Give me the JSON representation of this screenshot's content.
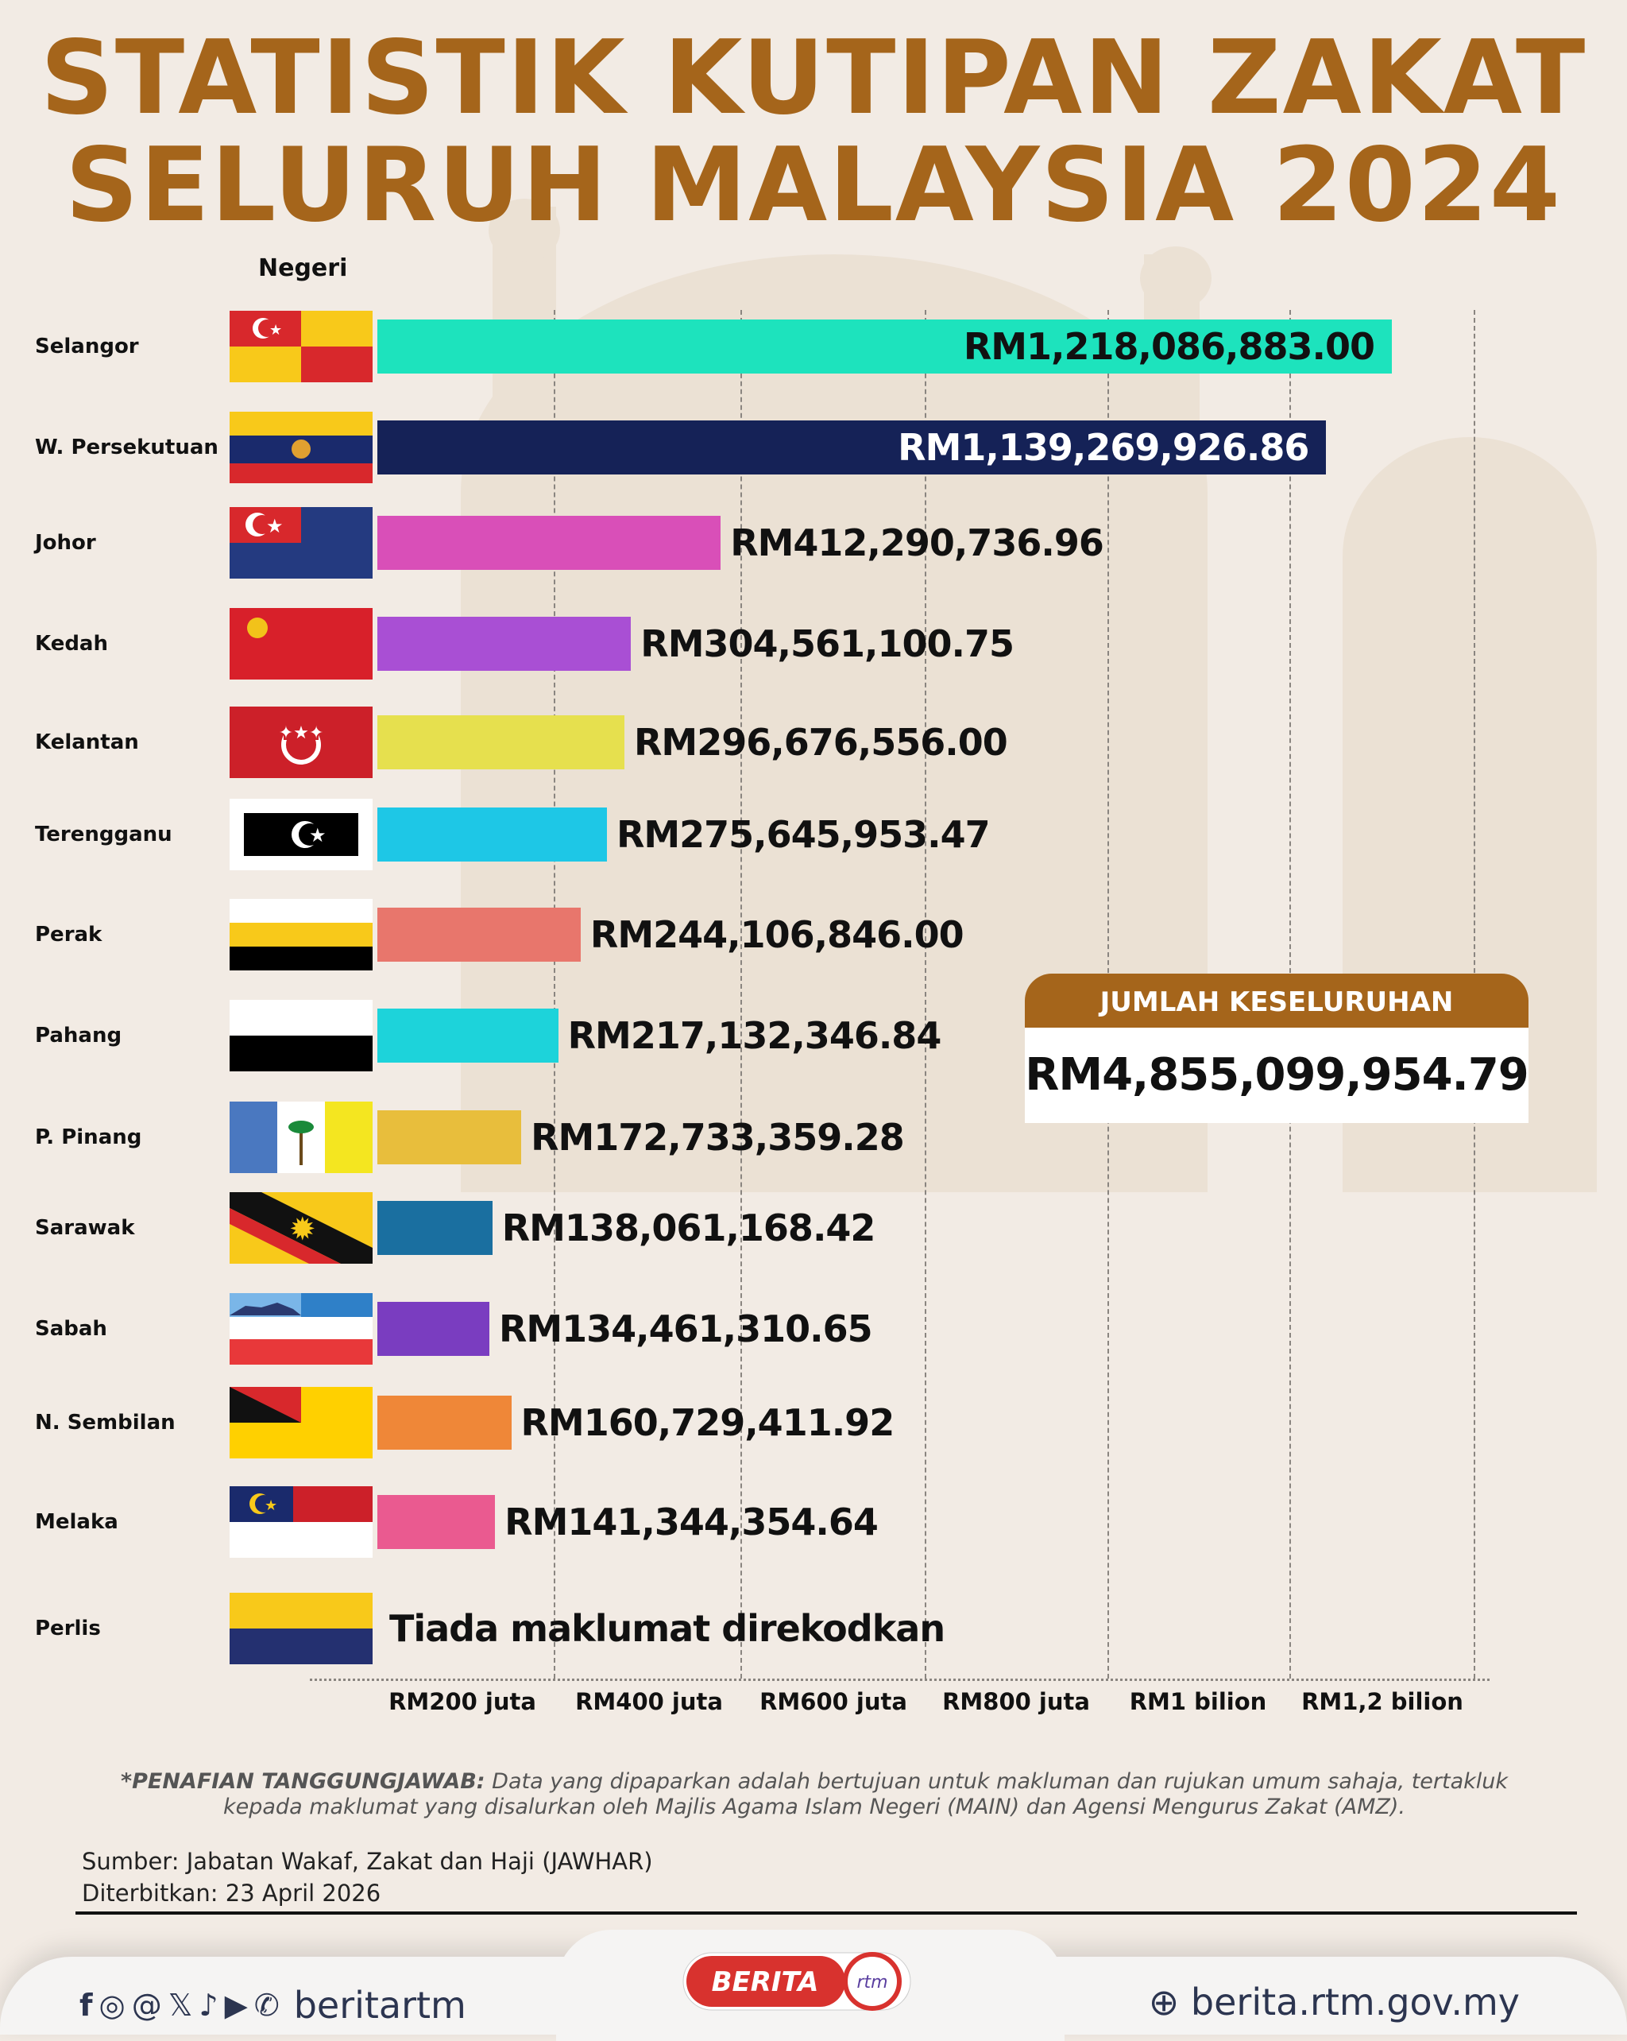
{
  "title": {
    "line1": "STATISTIK KUTIPAN ZAKAT",
    "line2": "SELURUH MALAYSIA 2024"
  },
  "colors": {
    "title": "#a5651b",
    "background": "#f2ebe4"
  },
  "chart_data": {
    "type": "bar",
    "orientation": "horizontal",
    "ylabel": "Negeri",
    "categories": [
      "Selangor",
      "W. Persekutuan",
      "Johor",
      "Kedah",
      "Kelantan",
      "Terengganu",
      "Perak",
      "Pahang",
      "P. Pinang",
      "Sarawak",
      "Sabah",
      "N. Sembilan",
      "Melaka",
      "Perlis"
    ],
    "values": [
      1218086883.0,
      1139269926.86,
      412290736.96,
      304561100.75,
      296676556.0,
      275645953.47,
      244106846.0,
      217132346.84,
      172733359.28,
      138061168.42,
      134461310.65,
      160729411.92,
      141344354.64,
      null
    ],
    "labels": [
      "RM1,218,086,883.00",
      "RM1,139,269,926.86",
      "RM412,290,736.96",
      "RM304,561,100.75",
      "RM296,676,556.00",
      "RM275,645,953.47",
      "RM244,106,846.00",
      "RM217,132,346.84",
      "RM172,733,359.28",
      "RM138,061,168.42",
      "RM134,461,310.65",
      "RM160,729,411.92",
      "RM141,344,354.64",
      "Tiada maklumat direkodkan"
    ],
    "bar_colors": [
      "#1de3bd",
      "#152257",
      "#d94fb8",
      "#a94fd4",
      "#e6e04e",
      "#1ec7e6",
      "#e8766c",
      "#1dd3da",
      "#e8be3c",
      "#1a6fa0",
      "#7a3dc0",
      "#ef8738",
      "#ea5a90",
      null
    ],
    "xticks": [
      "RM200 juta",
      "RM400 juta",
      "RM600 juta",
      "RM800 juta",
      "RM1 bilion",
      "RM1,2 bilion"
    ],
    "xlim": [
      0,
      1200000000
    ],
    "grid": true
  },
  "total": {
    "label": "JUMLAH KESELURUHAN",
    "value": "RM4,855,099,954.79"
  },
  "disclaimer": {
    "bold": "*PENAFIAN TANGGUNGJAWAB:",
    "text": " Data yang dipaparkan adalah bertujuan untuk makluman dan rujukan umum sahaja, tertakluk kepada maklumat yang disalurkan oleh Majlis Agama Islam Negeri (MAIN) dan Agensi Mengurus Zakat (AMZ)."
  },
  "source": "Sumber: Jabatan Wakaf, Zakat dan Haji (JAWHAR)",
  "published": "Diterbitkan: 23 April 2026",
  "footer": {
    "handle": "beritartm",
    "website": "berita.rtm.gov.my",
    "logo_text": "BERITA",
    "logo_sub": "rtm",
    "social_icons": [
      "facebook-icon",
      "instagram-icon",
      "threads-icon",
      "x-icon",
      "tiktok-icon",
      "youtube-icon",
      "whatsapp-icon"
    ]
  }
}
